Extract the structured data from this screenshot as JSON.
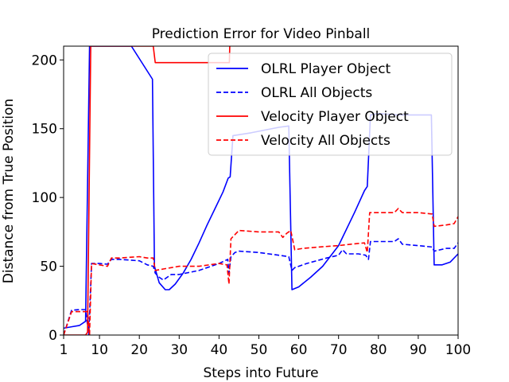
{
  "chart_data": {
    "type": "line",
    "title": "Prediction Error for Video Pinball",
    "xlabel": "Steps into Future",
    "ylabel": "Distance from True Position",
    "xlim": [
      1,
      100
    ],
    "ylim": [
      0,
      210
    ],
    "xticks": [
      1,
      10,
      20,
      30,
      40,
      50,
      60,
      70,
      80,
      90,
      100
    ],
    "yticks": [
      0,
      50,
      100,
      150,
      200
    ],
    "grid": false,
    "legend_position": "top-right",
    "series": [
      {
        "name": "OLRL Player Object",
        "color": "#0000ff",
        "style": "solid",
        "points": [
          [
            1,
            5
          ],
          [
            3,
            6
          ],
          [
            5,
            7
          ],
          [
            6.5,
            10
          ],
          [
            7.5,
            210
          ],
          [
            18,
            210
          ],
          [
            23.3,
            186
          ],
          [
            23.8,
            50
          ],
          [
            25,
            38
          ],
          [
            26.5,
            33
          ],
          [
            27.5,
            33
          ],
          [
            29,
            37
          ],
          [
            31,
            45
          ],
          [
            33,
            55
          ],
          [
            35,
            67
          ],
          [
            37,
            80
          ],
          [
            39,
            92
          ],
          [
            41,
            104
          ],
          [
            42.3,
            114
          ],
          [
            42.8,
            115
          ],
          [
            43.5,
            145
          ],
          [
            48,
            147
          ],
          [
            55,
            151
          ],
          [
            57.5,
            152
          ],
          [
            58.3,
            33
          ],
          [
            60,
            35
          ],
          [
            63,
            42
          ],
          [
            66,
            50
          ],
          [
            70,
            65
          ],
          [
            74,
            89
          ],
          [
            76.5,
            105
          ],
          [
            77.2,
            108
          ],
          [
            78,
            160
          ],
          [
            80,
            161
          ],
          [
            85,
            160
          ],
          [
            90,
            160
          ],
          [
            93.3,
            160
          ],
          [
            94,
            51
          ],
          [
            96,
            51
          ],
          [
            98,
            53
          ],
          [
            100,
            59
          ]
        ]
      },
      {
        "name": "OLRL All Objects",
        "color": "#0000ff",
        "style": "dashed",
        "points": [
          [
            1,
            0
          ],
          [
            3,
            18
          ],
          [
            5,
            18.5
          ],
          [
            6.5,
            18.5
          ],
          [
            7.3,
            0
          ],
          [
            8,
            52
          ],
          [
            10,
            52
          ],
          [
            12,
            51.5
          ],
          [
            13,
            55
          ],
          [
            15,
            55
          ],
          [
            20,
            54
          ],
          [
            22,
            51
          ],
          [
            23.5,
            50
          ],
          [
            24,
            45
          ],
          [
            25,
            42
          ],
          [
            26,
            40
          ],
          [
            28,
            44
          ],
          [
            30,
            44
          ],
          [
            35,
            47
          ],
          [
            40,
            52
          ],
          [
            42.2,
            55
          ],
          [
            42.5,
            45
          ],
          [
            43,
            57
          ],
          [
            44,
            60
          ],
          [
            45,
            61
          ],
          [
            50,
            60
          ],
          [
            55,
            58
          ],
          [
            57.5,
            57
          ],
          [
            58.3,
            47
          ],
          [
            59,
            49
          ],
          [
            62,
            52
          ],
          [
            67,
            56
          ],
          [
            70,
            58
          ],
          [
            71,
            62
          ],
          [
            72,
            59
          ],
          [
            75,
            59
          ],
          [
            76.8,
            58
          ],
          [
            77.5,
            55
          ],
          [
            78,
            68
          ],
          [
            84,
            68
          ],
          [
            85,
            70
          ],
          [
            86,
            66
          ],
          [
            90,
            65
          ],
          [
            93.5,
            64
          ],
          [
            94,
            61
          ],
          [
            97,
            63
          ],
          [
            99,
            63
          ],
          [
            100,
            67
          ]
        ]
      },
      {
        "name": "Velocity Player Object",
        "color": "#ff0000",
        "style": "solid",
        "points": [
          [
            1,
            0
          ],
          [
            6.5,
            0
          ],
          [
            7,
            2
          ],
          [
            7.8,
            210
          ],
          [
            23.5,
            210
          ],
          [
            24,
            198
          ],
          [
            33,
            198
          ],
          [
            42.6,
            198
          ],
          [
            42.7,
            210
          ]
        ]
      },
      {
        "name": "Velocity All Objects",
        "color": "#ff0000",
        "style": "dashed",
        "points": [
          [
            1,
            0
          ],
          [
            3,
            17
          ],
          [
            5,
            17
          ],
          [
            7,
            17
          ],
          [
            7.5,
            0
          ],
          [
            8,
            52
          ],
          [
            10,
            51
          ],
          [
            12,
            50
          ],
          [
            13,
            56
          ],
          [
            15,
            56
          ],
          [
            20,
            57
          ],
          [
            22,
            56
          ],
          [
            23.5,
            56
          ],
          [
            24,
            47
          ],
          [
            26,
            48
          ],
          [
            28,
            49
          ],
          [
            30,
            50
          ],
          [
            35,
            50
          ],
          [
            40,
            52
          ],
          [
            42,
            51
          ],
          [
            42.5,
            37
          ],
          [
            43,
            70
          ],
          [
            44,
            73
          ],
          [
            45,
            76
          ],
          [
            50,
            75
          ],
          [
            55,
            75
          ],
          [
            56,
            71
          ],
          [
            57,
            74
          ],
          [
            58,
            76
          ],
          [
            59,
            62
          ],
          [
            61,
            63
          ],
          [
            65,
            64
          ],
          [
            70,
            65
          ],
          [
            73,
            66
          ],
          [
            76.5,
            67
          ],
          [
            77.2,
            60
          ],
          [
            77.8,
            89
          ],
          [
            82,
            89
          ],
          [
            84,
            89
          ],
          [
            85,
            92
          ],
          [
            86,
            89
          ],
          [
            90,
            89
          ],
          [
            93.5,
            88
          ],
          [
            94,
            79
          ],
          [
            97,
            80
          ],
          [
            99,
            81
          ],
          [
            100,
            86
          ]
        ]
      }
    ]
  }
}
